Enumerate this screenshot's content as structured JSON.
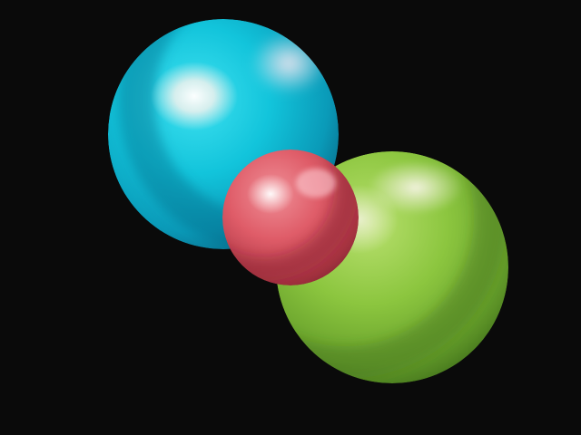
{
  "scene": {
    "background_color": "#0a0a0a",
    "objects": [
      {
        "name": "cyan-sphere",
        "base_color": "#12c4db",
        "dark_color": "#0a6f8c",
        "highlight_color": "#f2f2ee",
        "rim_color": "#e9e2ee"
      },
      {
        "name": "green-sphere",
        "base_color": "#8cc63f",
        "dark_color": "#3f6f1a",
        "highlight_color": "#f1efdc",
        "rim_color": "#e9ead8"
      },
      {
        "name": "red-sphere",
        "base_color": "#df5c68",
        "dark_color": "#8c2633",
        "highlight_color": "#fff2f2",
        "rim_color": "#ffd6dc"
      }
    ]
  }
}
